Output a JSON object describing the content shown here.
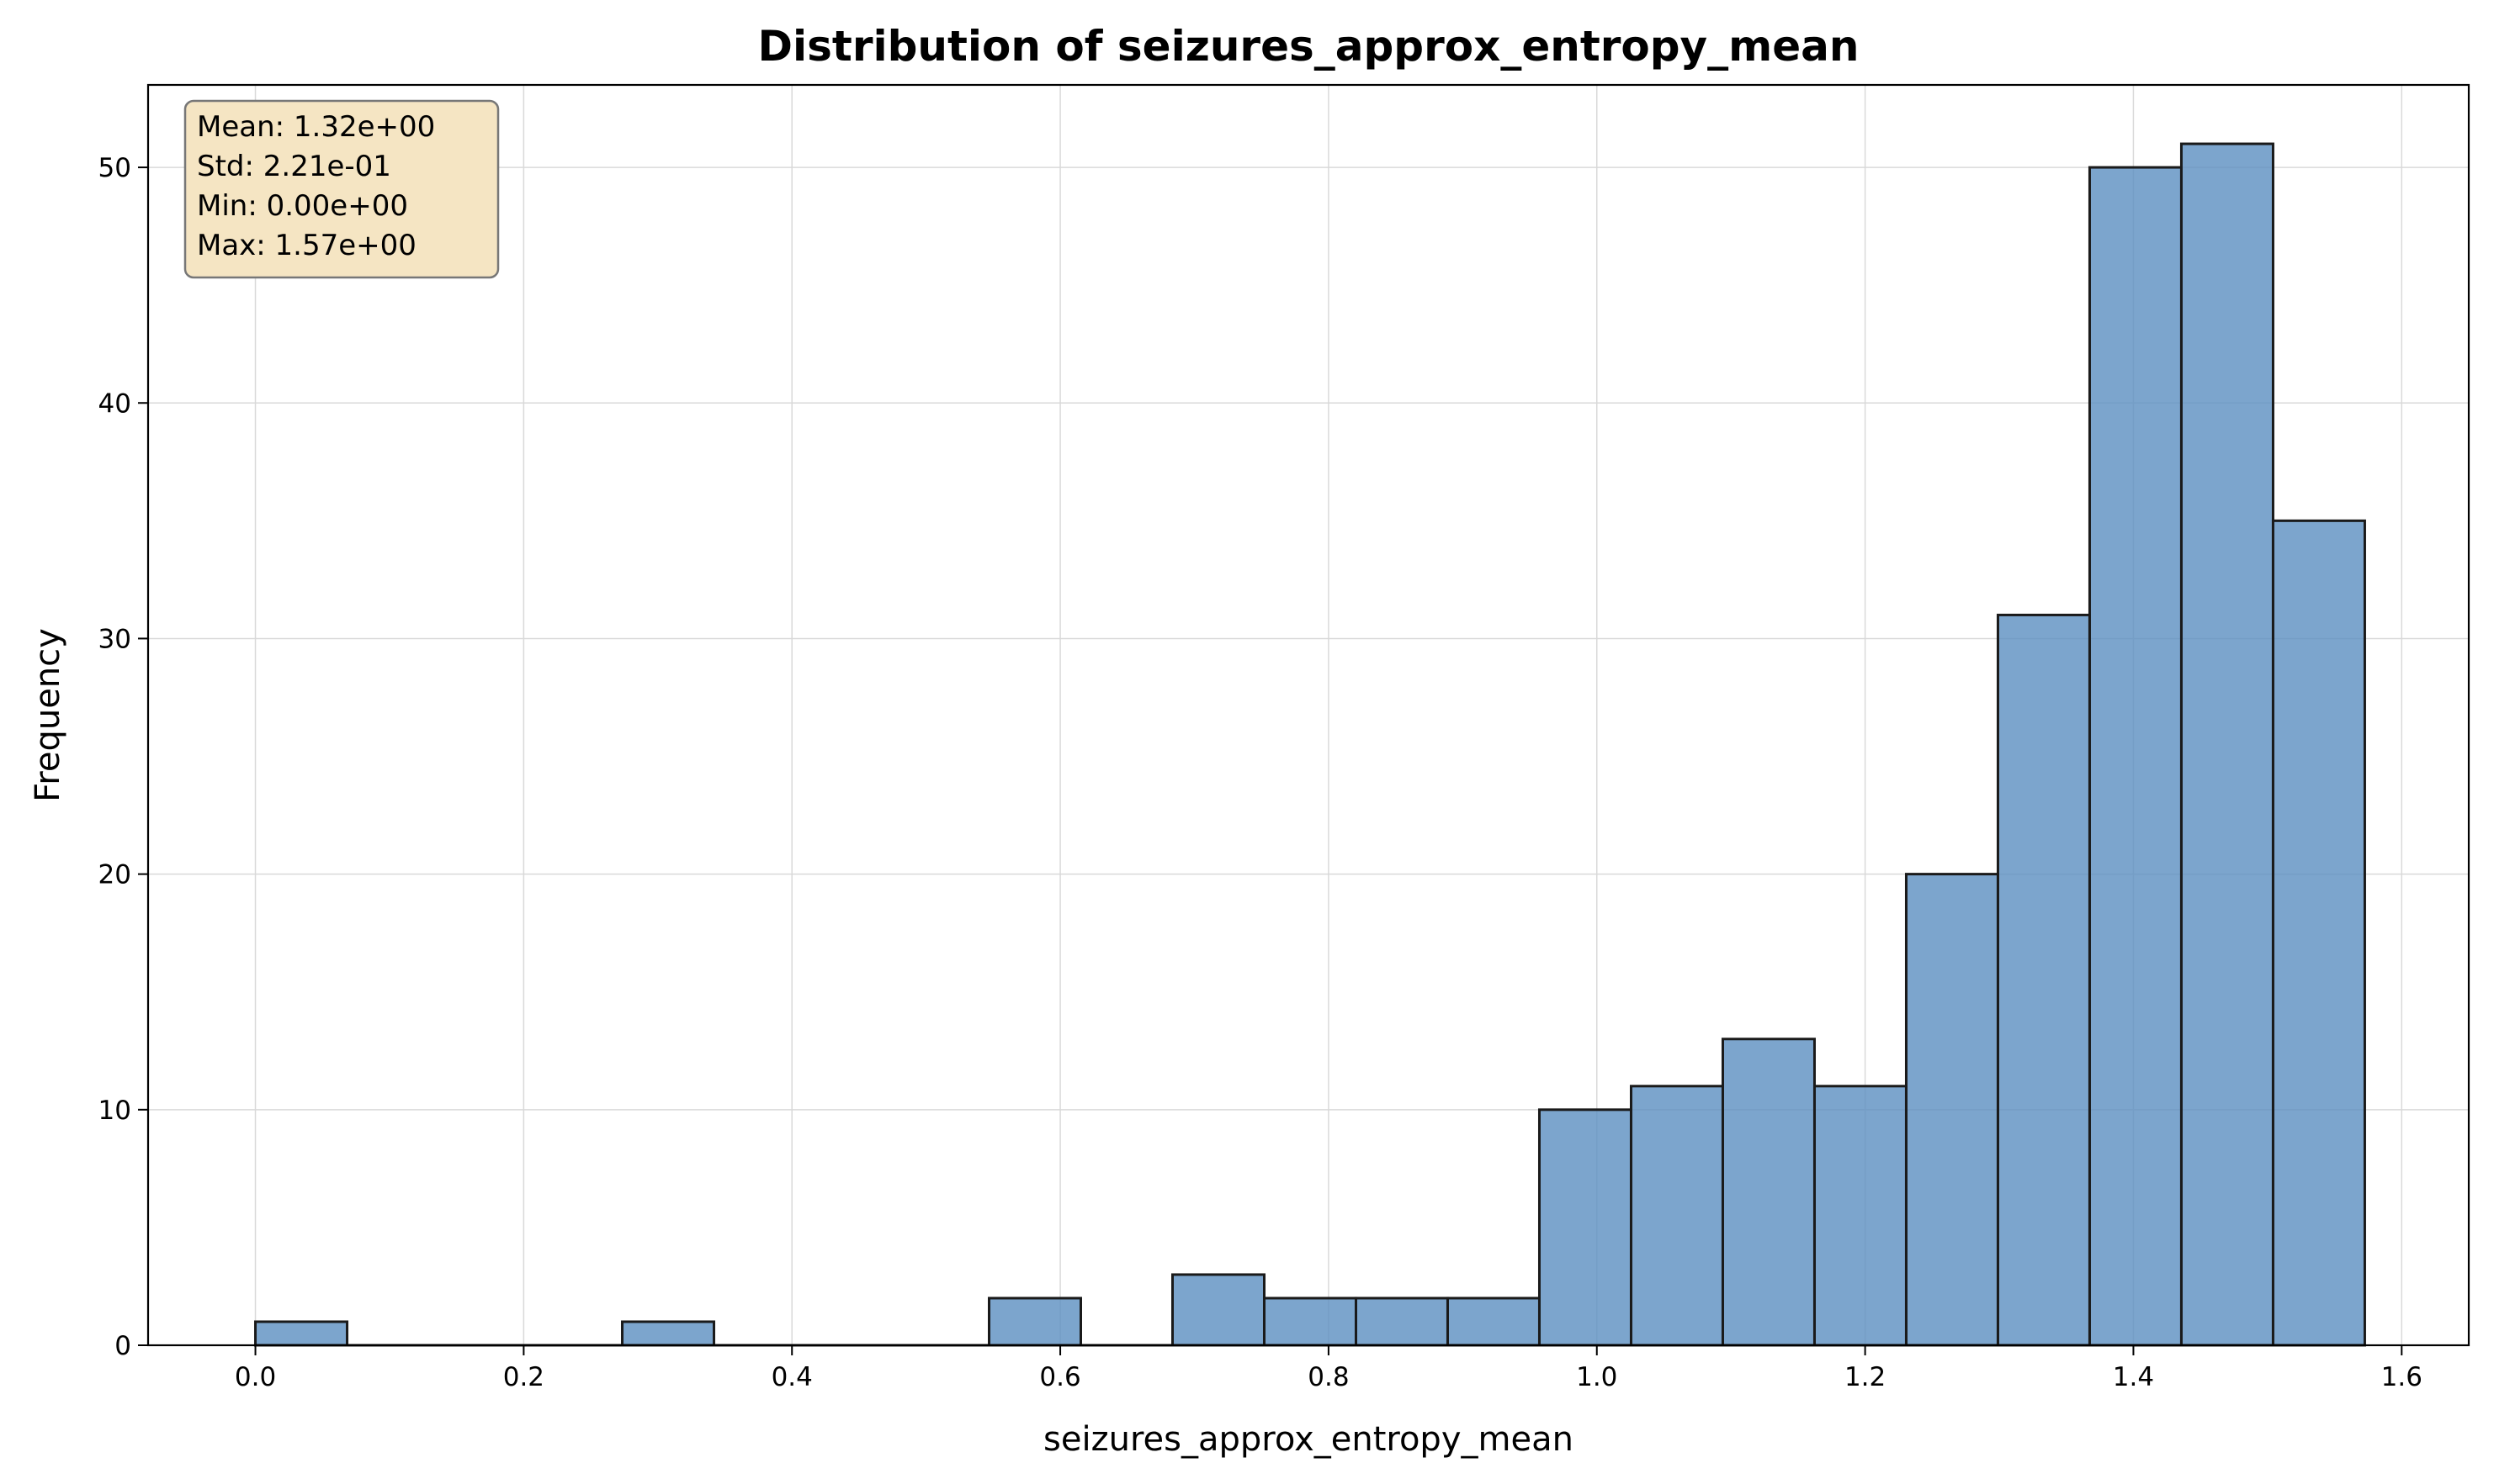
{
  "chart_data": {
    "type": "bar",
    "title": "Distribution of seizures_approx_entropy_mean",
    "xlabel": "seizures_approx_entropy_mean",
    "ylabel": "Frequency",
    "xlim": [
      -0.08,
      1.65
    ],
    "ylim": [
      0,
      53.5
    ],
    "xticks": [
      "0.0",
      "0.2",
      "0.4",
      "0.6",
      "0.8",
      "1.0",
      "1.2",
      "1.4",
      "1.6"
    ],
    "xtick_values": [
      0.0,
      0.2,
      0.4,
      0.6,
      0.8,
      1.0,
      1.2,
      1.4,
      1.6
    ],
    "yticks": [
      "0",
      "10",
      "20",
      "30",
      "40",
      "50"
    ],
    "ytick_values": [
      0,
      10,
      20,
      30,
      40,
      50
    ],
    "bin_start": 0.0,
    "bin_end": 1.5725,
    "counts": [
      1,
      0,
      0,
      0,
      1,
      0,
      0,
      0,
      2,
      0,
      3,
      2,
      2,
      2,
      10,
      11,
      13,
      11,
      20,
      31,
      50,
      51,
      35
    ],
    "grid": true,
    "bar_color": "#5B8FC0",
    "edge_color": "#1a1a1a",
    "stats_box": {
      "lines": [
        "Mean: 1.32e+00",
        "Std: 2.21e-01",
        "Min: 0.00e+00",
        "Max: 1.57e+00"
      ],
      "background": "#F5E5C3",
      "placement": "top-left"
    }
  }
}
